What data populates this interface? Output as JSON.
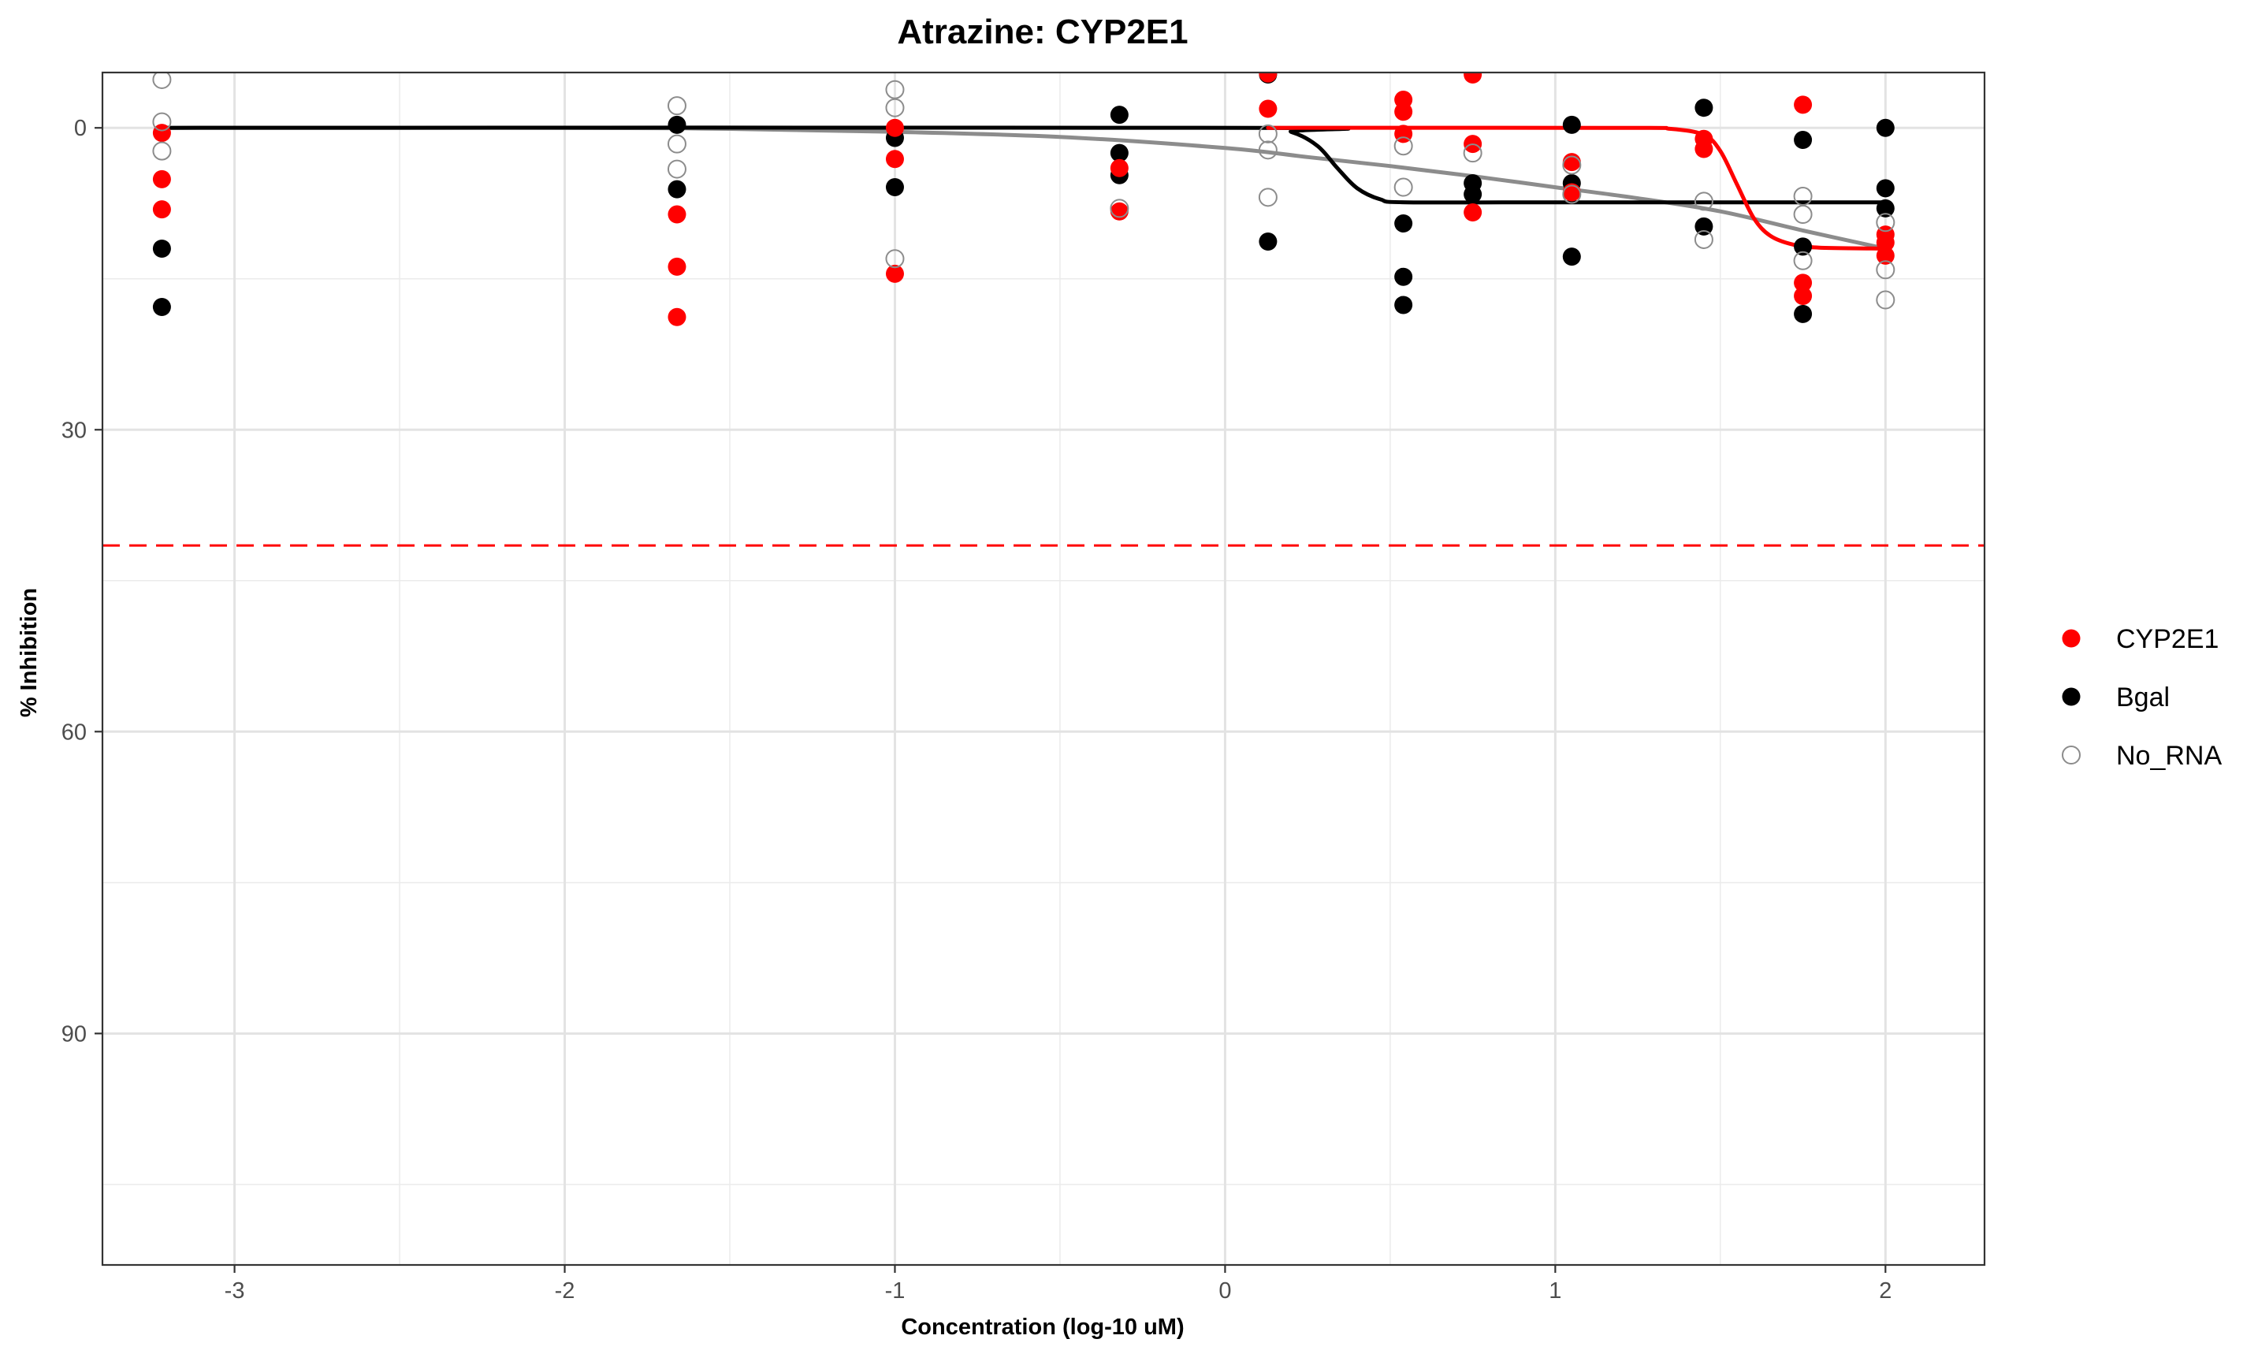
{
  "chart_data": {
    "type": "scatter",
    "title": "Atrazine: CYP2E1",
    "xlabel": "Concentration (log-10 uM)",
    "ylabel": "% Inhibition",
    "xlim": [
      -3.4,
      2.3
    ],
    "ylim": [
      113,
      -5.5
    ],
    "y_reversed": true,
    "grid": true,
    "legend_position": "right",
    "x_ticks": [
      -3,
      -2,
      -1,
      0,
      1,
      2
    ],
    "x_tick_labels": [
      "-3",
      "-2",
      "-1",
      "0",
      "1",
      "2"
    ],
    "y_ticks": [
      0,
      30,
      60,
      90
    ],
    "y_tick_labels": [
      "0",
      "30",
      "60",
      "90"
    ],
    "threshold": {
      "value": 41.5,
      "color": "#ff0000",
      "style": "dashed"
    },
    "series": [
      {
        "name": "CYP2E1",
        "color": "#ff0000",
        "marker": "filled",
        "points": [
          [
            -3.22,
            0.5
          ],
          [
            -3.22,
            5.1
          ],
          [
            -3.22,
            8.1
          ],
          [
            -1.66,
            8.6
          ],
          [
            -1.66,
            13.8
          ],
          [
            -1.66,
            18.8
          ],
          [
            -1.0,
            0.0
          ],
          [
            -1.0,
            3.1
          ],
          [
            -1.0,
            14.5
          ],
          [
            -0.32,
            4.0
          ],
          [
            -0.32,
            8.3
          ],
          [
            0.13,
            -5.4
          ],
          [
            0.13,
            -1.9
          ],
          [
            0.54,
            -2.8
          ],
          [
            0.54,
            -1.6
          ],
          [
            0.54,
            0.6
          ],
          [
            0.75,
            -5.3
          ],
          [
            0.75,
            1.6
          ],
          [
            0.75,
            8.4
          ],
          [
            1.05,
            3.4
          ],
          [
            1.05,
            6.4
          ],
          [
            1.45,
            1.1
          ],
          [
            1.45,
            2.1
          ],
          [
            1.75,
            -2.3
          ],
          [
            1.75,
            15.4
          ],
          [
            1.75,
            16.7
          ],
          [
            2.0,
            10.6
          ],
          [
            2.0,
            11.4
          ],
          [
            2.0,
            12.7
          ]
        ],
        "curve": [
          [
            0.13,
            0.0
          ],
          [
            1.2,
            0.0
          ],
          [
            1.35,
            0.1
          ],
          [
            1.45,
            0.7
          ],
          [
            1.5,
            2.3
          ],
          [
            1.55,
            5.6
          ],
          [
            1.6,
            8.9
          ],
          [
            1.65,
            10.7
          ],
          [
            1.72,
            11.6
          ],
          [
            1.8,
            11.9
          ],
          [
            2.0,
            12.0
          ]
        ]
      },
      {
        "name": "Bgal",
        "color": "#000000",
        "marker": "filled",
        "points": [
          [
            -3.22,
            12.0
          ],
          [
            -3.22,
            17.8
          ],
          [
            -1.66,
            -0.3
          ],
          [
            -1.66,
            6.1
          ],
          [
            -1.0,
            1.0
          ],
          [
            -1.0,
            5.9
          ],
          [
            -0.32,
            -1.3
          ],
          [
            -0.32,
            2.5
          ],
          [
            -0.32,
            4.7
          ],
          [
            0.13,
            -5.3
          ],
          [
            0.13,
            11.3
          ],
          [
            0.54,
            9.5
          ],
          [
            0.54,
            14.8
          ],
          [
            0.54,
            17.6
          ],
          [
            0.75,
            5.5
          ],
          [
            0.75,
            6.6
          ],
          [
            1.05,
            -0.3
          ],
          [
            1.05,
            5.5
          ],
          [
            1.05,
            12.8
          ],
          [
            1.45,
            -2.0
          ],
          [
            1.45,
            9.8
          ],
          [
            1.75,
            1.2
          ],
          [
            1.75,
            11.8
          ],
          [
            1.75,
            18.5
          ],
          [
            2.0,
            0.0
          ],
          [
            2.0,
            6.0
          ],
          [
            2.0,
            8.0
          ]
        ],
        "curve": [
          [
            -3.22,
            0.0
          ],
          [
            0.1,
            0.0
          ],
          [
            0.2,
            0.4
          ],
          [
            0.28,
            1.8
          ],
          [
            0.34,
            4.0
          ],
          [
            0.4,
            6.0
          ],
          [
            0.47,
            7.1
          ],
          [
            0.55,
            7.4
          ],
          [
            1.0,
            7.4
          ],
          [
            2.0,
            7.4
          ]
        ]
      },
      {
        "name": "No_RNA",
        "color": "#8c8c8c",
        "marker": "hollow",
        "points": [
          [
            -3.22,
            -4.8
          ],
          [
            -3.22,
            -0.6
          ],
          [
            -3.22,
            2.3
          ],
          [
            -1.66,
            -2.2
          ],
          [
            -1.66,
            1.6
          ],
          [
            -1.66,
            4.1
          ],
          [
            -1.0,
            -3.8
          ],
          [
            -1.0,
            -2.0
          ],
          [
            -1.0,
            13.0
          ],
          [
            -0.32,
            8.0
          ],
          [
            0.13,
            0.6
          ],
          [
            0.13,
            2.2
          ],
          [
            0.13,
            6.9
          ],
          [
            0.54,
            1.8
          ],
          [
            0.54,
            5.9
          ],
          [
            0.75,
            2.5
          ],
          [
            1.05,
            3.7
          ],
          [
            1.05,
            6.6
          ],
          [
            1.45,
            7.3
          ],
          [
            1.45,
            11.1
          ],
          [
            1.75,
            6.8
          ],
          [
            1.75,
            8.6
          ],
          [
            1.75,
            13.2
          ],
          [
            2.0,
            9.4
          ],
          [
            2.0,
            14.1
          ],
          [
            2.0,
            17.1
          ]
        ],
        "curve": [
          [
            -3.22,
            0.0
          ],
          [
            -2.0,
            0.0
          ],
          [
            -1.5,
            0.1
          ],
          [
            -1.0,
            0.4
          ],
          [
            -0.5,
            0.9
          ],
          [
            0.0,
            2.0
          ],
          [
            0.25,
            2.9
          ],
          [
            0.5,
            3.8
          ],
          [
            0.75,
            4.8
          ],
          [
            1.0,
            5.9
          ],
          [
            1.25,
            7.0
          ],
          [
            1.5,
            8.3
          ],
          [
            1.75,
            10.2
          ],
          [
            2.0,
            12.0
          ]
        ]
      }
    ]
  }
}
